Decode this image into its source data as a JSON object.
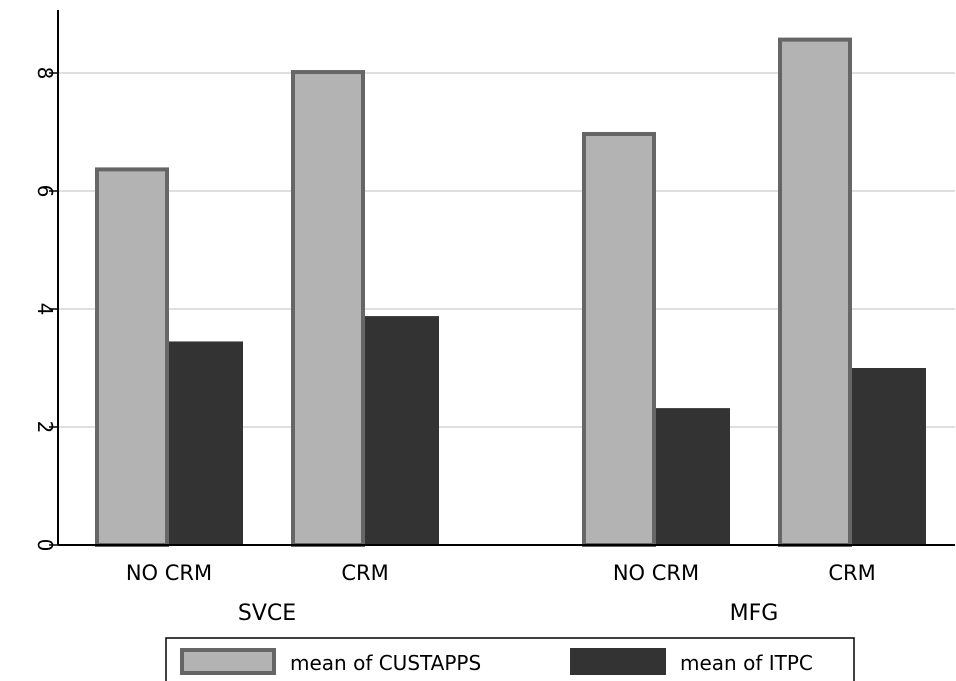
{
  "chart_data": {
    "type": "bar",
    "groups": [
      {
        "label": "SVCE",
        "categories": [
          "NO CRM",
          "CRM"
        ]
      },
      {
        "label": "MFG",
        "categories": [
          "NO CRM",
          "CRM"
        ]
      }
    ],
    "series": [
      {
        "name": "mean of CUSTAPPS",
        "color": "#b3b3b3",
        "edge_color": "#666666",
        "values": [
          6.4,
          8.05,
          7.0,
          8.6
        ]
      },
      {
        "name": "mean of ITPC",
        "color": "#333333",
        "values": [
          3.45,
          3.88,
          2.32,
          3.0
        ]
      }
    ],
    "yticks": [
      "0",
      "2",
      "4",
      "6",
      "8"
    ],
    "ylim": [
      0,
      9.0
    ],
    "grid": true,
    "legend_position": "bottom"
  }
}
